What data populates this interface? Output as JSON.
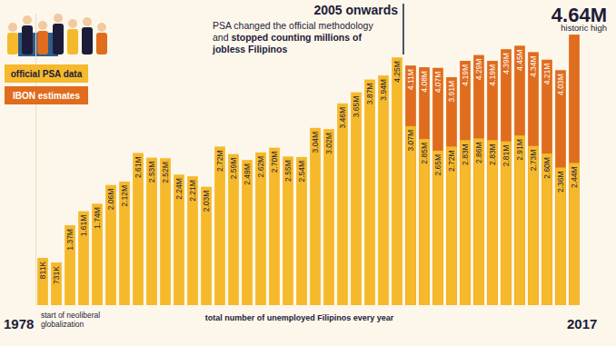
{
  "chart_data": {
    "type": "bar",
    "title": "total number of unemployed Filipinos every year",
    "categories": [
      "1978",
      null,
      null,
      null,
      null,
      null,
      null,
      null,
      null,
      null,
      null,
      null,
      null,
      null,
      null,
      null,
      null,
      null,
      null,
      null,
      null,
      null,
      null,
      null,
      null,
      null,
      null,
      null,
      null,
      null,
      null,
      null,
      null,
      null,
      null,
      null,
      null,
      null,
      null,
      "2017"
    ],
    "series": [
      {
        "name": "official PSA data",
        "color": "#f6b92b",
        "values": [
          0.811,
          0.731,
          1.37,
          1.61,
          1.74,
          2.06,
          2.12,
          2.61,
          2.53,
          2.52,
          2.24,
          2.21,
          2.03,
          2.72,
          2.59,
          2.49,
          2.62,
          2.7,
          2.55,
          2.54,
          3.04,
          3.02,
          3.46,
          3.65,
          3.87,
          3.94,
          4.25,
          3.07,
          2.85,
          2.65,
          2.72,
          2.83,
          2.86,
          2.83,
          2.81,
          2.91,
          2.73,
          2.6,
          2.36,
          2.44
        ],
        "value_labels": [
          "811K",
          "731K",
          "1.37M",
          "1.61M",
          "1.74M",
          "2.06M",
          "2.12M",
          "2.61M",
          "2.53M",
          "2.52M",
          "2.24M",
          "2.21M",
          "2.03M",
          "2.72M",
          "2.59M",
          "2.49M",
          "2.62M",
          "2.70M",
          "2.55M",
          "2.54M",
          "3.04M",
          "3.02M",
          "3.46M",
          "3.65M",
          "3.87M",
          "3.94M",
          "4.25M",
          "3.07M",
          "2.85M",
          "2.65M",
          "2.72M",
          "2.83M",
          "2.86M",
          "2.83M",
          "2.81M",
          "2.91M",
          "2.73M",
          "2.60M",
          "2.36M",
          "2.44M"
        ]
      },
      {
        "name": "IBON estimates",
        "color": "#e06c1e",
        "values": [
          null,
          null,
          null,
          null,
          null,
          null,
          null,
          null,
          null,
          null,
          null,
          null,
          null,
          null,
          null,
          null,
          null,
          null,
          null,
          null,
          null,
          null,
          null,
          null,
          null,
          null,
          null,
          4.11,
          4.08,
          4.07,
          3.91,
          4.19,
          4.29,
          4.19,
          4.39,
          4.45,
          4.34,
          4.21,
          4.03,
          4.64
        ],
        "value_labels": [
          null,
          null,
          null,
          null,
          null,
          null,
          null,
          null,
          null,
          null,
          null,
          null,
          null,
          null,
          null,
          null,
          null,
          null,
          null,
          null,
          null,
          null,
          null,
          null,
          null,
          null,
          null,
          "4.11M",
          "4.08M",
          "4.07M",
          "3.91M",
          "4.19M",
          "4.29M",
          "4.19M",
          "4.39M",
          "4.45M",
          "4.34M",
          "4.21M",
          "4.03M",
          "4.64M"
        ]
      }
    ],
    "ylim": [
      0,
      5
    ],
    "tick_labels": "x",
    "stacked": false,
    "data_labels": true,
    "legend": "upper left",
    "annotations": [
      {
        "text": "2005 onwards"
      },
      {
        "text": "PSA changed the official methodology and",
        "bold": "stopped counting millions of jobless Filipinos"
      },
      {
        "text": "historic high"
      },
      {
        "text": "start of neoliberal globalization"
      }
    ]
  }
}
